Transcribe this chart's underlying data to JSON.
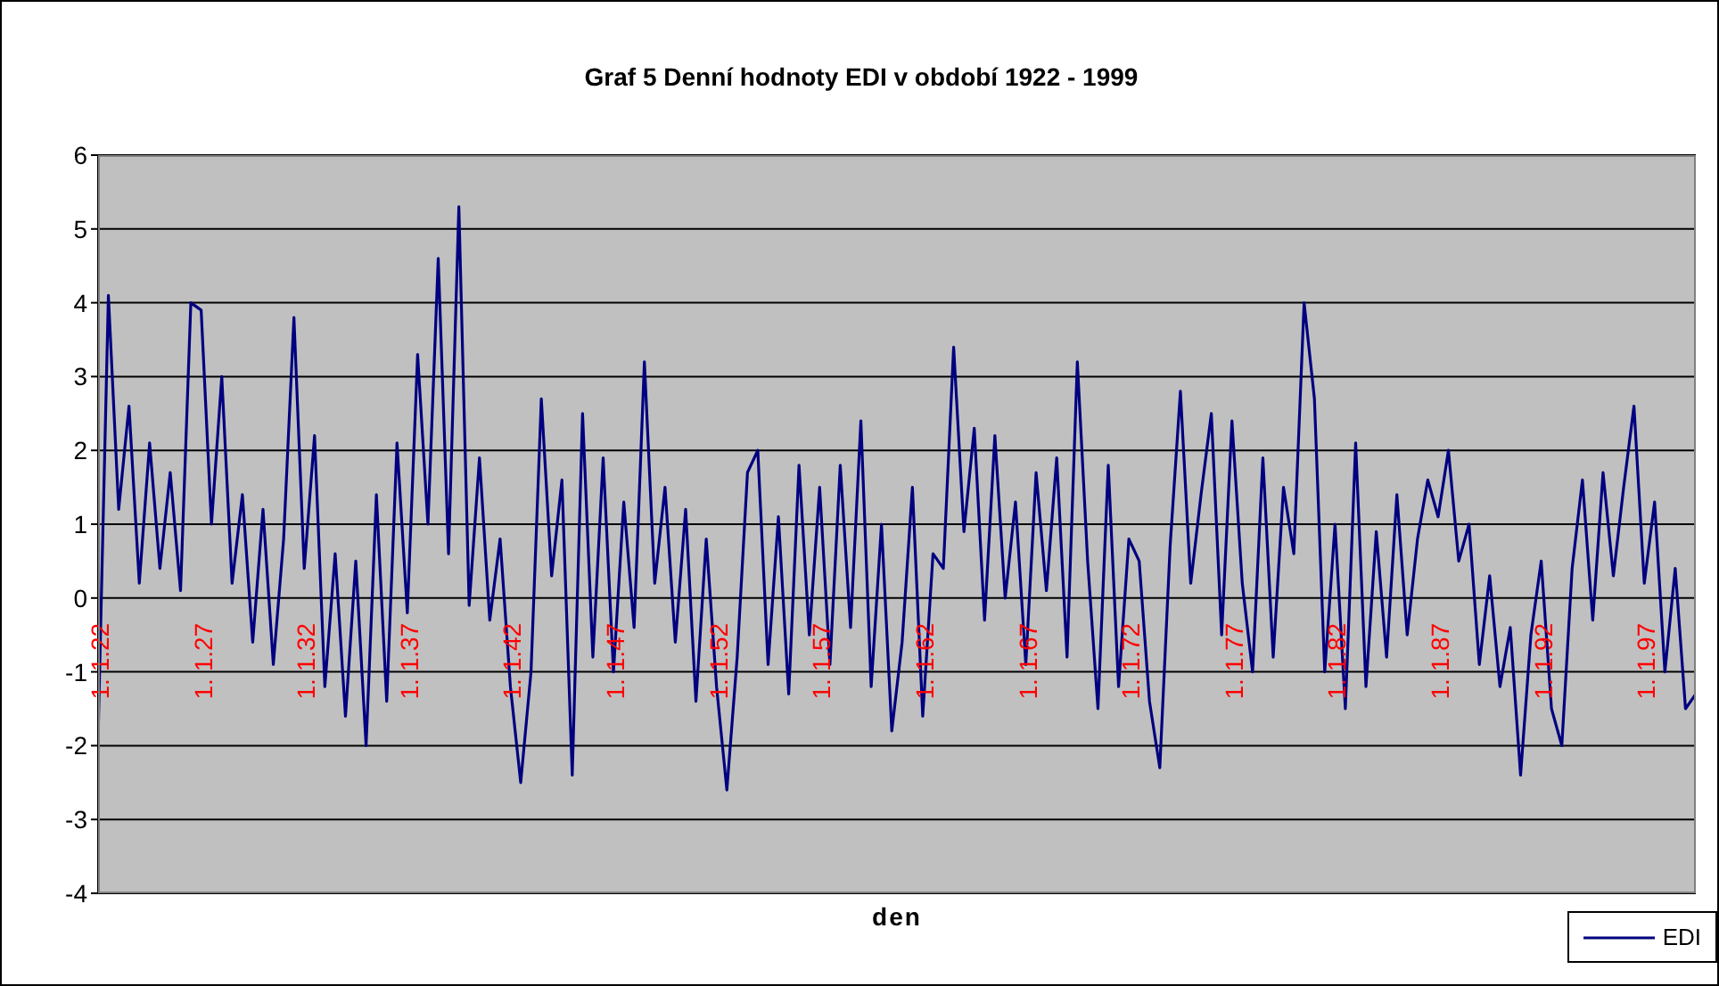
{
  "chart_data": {
    "type": "line",
    "title": "Graf 5 Denní hodnoty EDI v období 1922 - 1999",
    "xlabel": "den",
    "categories": [
      "1. 1.22",
      null,
      null,
      null,
      null,
      null,
      null,
      null,
      null,
      null,
      "1. 1.27",
      null,
      null,
      null,
      null,
      null,
      null,
      null,
      null,
      null,
      "1. 1.32",
      null,
      null,
      null,
      null,
      null,
      null,
      null,
      null,
      null,
      "1. 1.37",
      null,
      null,
      null,
      null,
      null,
      null,
      null,
      null,
      null,
      "1. 1.42",
      null,
      null,
      null,
      null,
      null,
      null,
      null,
      null,
      null,
      "1. 1.47",
      null,
      null,
      null,
      null,
      null,
      null,
      null,
      null,
      null,
      "1. 1.52",
      null,
      null,
      null,
      null,
      null,
      null,
      null,
      null,
      null,
      "1. 1.57",
      null,
      null,
      null,
      null,
      null,
      null,
      null,
      null,
      null,
      "1. 1.62",
      null,
      null,
      null,
      null,
      null,
      null,
      null,
      null,
      null,
      "1. 1.67",
      null,
      null,
      null,
      null,
      null,
      null,
      null,
      null,
      null,
      "1. 1.72",
      null,
      null,
      null,
      null,
      null,
      null,
      null,
      null,
      null,
      "1. 1.77",
      null,
      null,
      null,
      null,
      null,
      null,
      null,
      null,
      null,
      "1. 1.82",
      null,
      null,
      null,
      null,
      null,
      null,
      null,
      null,
      null,
      "1. 1.87",
      null,
      null,
      null,
      null,
      null,
      null,
      null,
      null,
      null,
      "1. 1.92",
      null,
      null,
      null,
      null,
      null,
      null,
      null,
      null,
      null,
      "1. 1.97",
      null,
      null,
      null,
      null,
      null
    ],
    "series": [
      {
        "name": "EDI",
        "color": "#000080",
        "values": [
          -1.9,
          4.1,
          1.2,
          2.6,
          0.2,
          2.1,
          0.4,
          1.7,
          0.1,
          4.0,
          3.9,
          1.0,
          3.0,
          0.2,
          1.4,
          -0.6,
          1.2,
          -0.9,
          0.8,
          3.8,
          0.4,
          2.2,
          -1.2,
          0.6,
          -1.6,
          0.5,
          -2.0,
          1.4,
          -1.4,
          2.1,
          -0.2,
          3.3,
          1.0,
          4.6,
          0.6,
          5.3,
          -0.1,
          1.9,
          -0.3,
          0.8,
          -1.2,
          -2.5,
          -1.0,
          2.7,
          0.3,
          1.6,
          -2.4,
          2.5,
          -0.8,
          1.9,
          -1.0,
          1.3,
          -0.4,
          3.2,
          0.2,
          1.5,
          -0.6,
          1.2,
          -1.4,
          0.8,
          -1.2,
          -2.6,
          -0.8,
          1.7,
          2.0,
          -0.9,
          1.1,
          -1.3,
          1.8,
          -0.5,
          1.5,
          -0.9,
          1.8,
          -0.4,
          2.4,
          -1.2,
          1.0,
          -1.8,
          -0.6,
          1.5,
          -1.6,
          0.6,
          0.4,
          3.4,
          0.9,
          2.3,
          -0.3,
          2.2,
          0.0,
          1.3,
          -0.9,
          1.7,
          0.1,
          1.9,
          -0.8,
          3.2,
          0.5,
          -1.5,
          1.8,
          -1.2,
          0.8,
          0.5,
          -1.4,
          -2.3,
          0.7,
          2.8,
          0.2,
          1.4,
          2.5,
          -0.5,
          2.4,
          0.2,
          -1.0,
          1.9,
          -0.8,
          1.5,
          0.6,
          4.0,
          2.7,
          -1.0,
          1.0,
          -1.5,
          2.1,
          -1.2,
          0.9,
          -0.8,
          1.4,
          -0.5,
          0.8,
          1.6,
          1.1,
          2.0,
          0.5,
          1.0,
          -0.9,
          0.3,
          -1.2,
          -0.4,
          -2.4,
          -0.5,
          0.5,
          -1.5,
          -2.0,
          0.4,
          1.6,
          -0.3,
          1.7,
          0.3,
          1.5,
          2.6,
          0.2,
          1.3,
          -1.0,
          0.4,
          -1.5,
          -1.3
        ]
      }
    ],
    "ylim": [
      -4,
      6
    ],
    "yticks": [
      -4,
      -3,
      -2,
      -1,
      0,
      1,
      2,
      3,
      4,
      5,
      6
    ],
    "grid": "y",
    "legend": "bottom right"
  }
}
